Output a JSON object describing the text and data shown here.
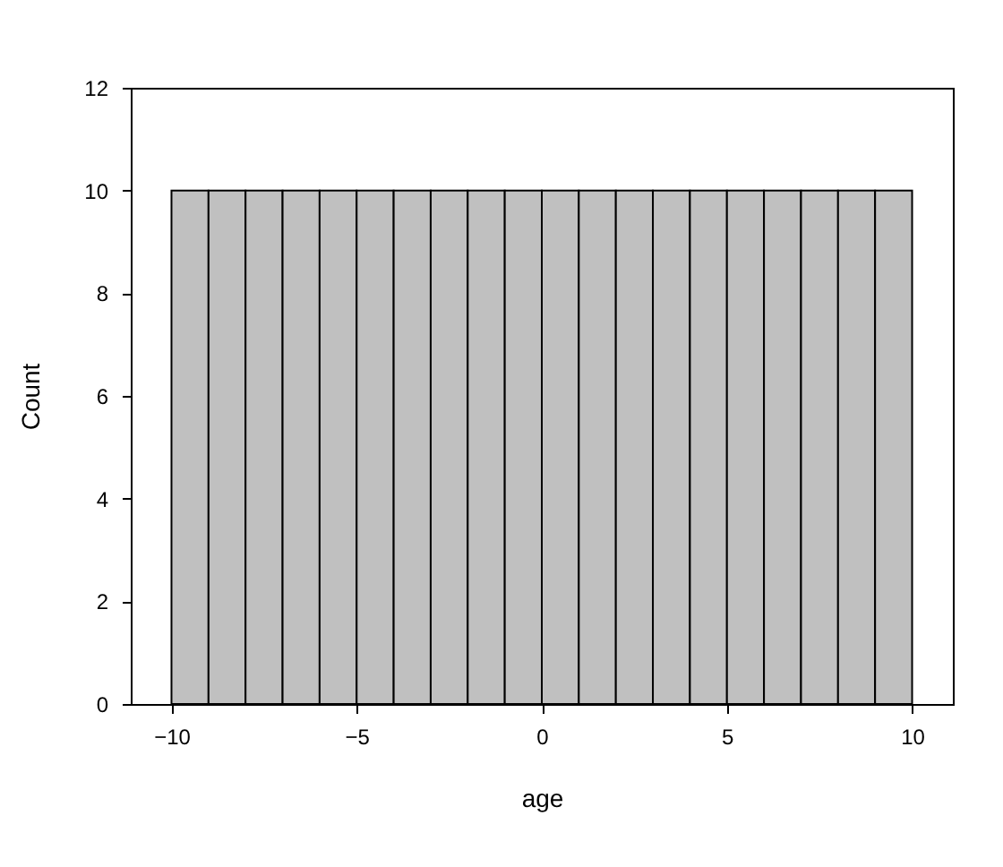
{
  "chart_data": {
    "type": "histogram",
    "xlabel": "age",
    "ylabel": "Count",
    "bins": [
      -10,
      -9,
      -8,
      -7,
      -6,
      -5,
      -4,
      -3,
      -2,
      -1,
      0,
      1,
      2,
      3,
      4,
      5,
      6,
      7,
      8,
      9,
      10
    ],
    "values": [
      10,
      10,
      10,
      10,
      10,
      10,
      10,
      10,
      10,
      10,
      10,
      10,
      10,
      10,
      10,
      10,
      10,
      10,
      10,
      10
    ],
    "color": "#c0c0c0",
    "xlim": [
      -11.1,
      11.1
    ],
    "xticks": [
      -10,
      -5,
      0,
      5,
      10
    ],
    "ylim": [
      0,
      12
    ],
    "yticks": [
      0,
      2,
      4,
      6,
      8,
      10,
      12
    ],
    "grid": false
  }
}
